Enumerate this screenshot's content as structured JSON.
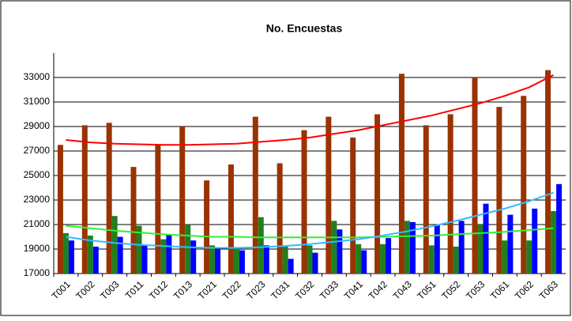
{
  "chart_data": {
    "type": "bar",
    "title": "No. Encuestas",
    "categories": [
      "T001",
      "T002",
      "T003",
      "T011",
      "T012",
      "T013",
      "T021",
      "T022",
      "T023",
      "T031",
      "T032",
      "T033",
      "T041",
      "T042",
      "T043",
      "T051",
      "T052",
      "T053",
      "T061",
      "T062",
      "T063"
    ],
    "series": [
      {
        "color": "#993300",
        "values": [
          27500,
          29100,
          29300,
          25700,
          27500,
          29000,
          24600,
          25900,
          29800,
          26000,
          28700,
          29800,
          28100,
          30000,
          33300,
          29100,
          30000,
          33000,
          30600,
          31500,
          33600
        ]
      },
      {
        "color": "#1f7f1f",
        "values": [
          20300,
          20100,
          21700,
          20900,
          19800,
          21000,
          19300,
          19100,
          21600,
          19200,
          19300,
          21300,
          19400,
          19400,
          21300,
          19300,
          19200,
          21000,
          19700,
          19700,
          22100
        ]
      },
      {
        "color": "#0000ff",
        "values": [
          19700,
          19200,
          20000,
          19300,
          20200,
          19700,
          19000,
          18900,
          19300,
          18200,
          18700,
          20600,
          18900,
          19900,
          21200,
          21000,
          21300,
          22700,
          21800,
          22300,
          24300
        ]
      }
    ],
    "trendlines": [
      {
        "color": "#ff0000",
        "values": [
          27900,
          27700,
          27600,
          27550,
          27500,
          27500,
          27550,
          27600,
          27750,
          27900,
          28100,
          28400,
          28700,
          29100,
          29500,
          29900,
          30400,
          30900,
          31500,
          32200,
          33200
        ]
      },
      {
        "color": "#33ee33",
        "values": [
          20900,
          20700,
          20500,
          20350,
          20200,
          20100,
          20000,
          20000,
          19950,
          19950,
          19950,
          19950,
          19950,
          20000,
          20050,
          20100,
          20200,
          20300,
          20400,
          20550,
          20700
        ]
      },
      {
        "color": "#33bbff",
        "values": [
          20000,
          19700,
          19500,
          19350,
          19250,
          19150,
          19100,
          19100,
          19150,
          19250,
          19400,
          19600,
          19800,
          20100,
          20450,
          20850,
          21300,
          21800,
          22300,
          22900,
          23600
        ]
      }
    ],
    "ylim": [
      17000,
      35000
    ],
    "yticks": [
      17000,
      19000,
      21000,
      23000,
      25000,
      27000,
      29000,
      31000,
      33000
    ],
    "grid": true
  }
}
